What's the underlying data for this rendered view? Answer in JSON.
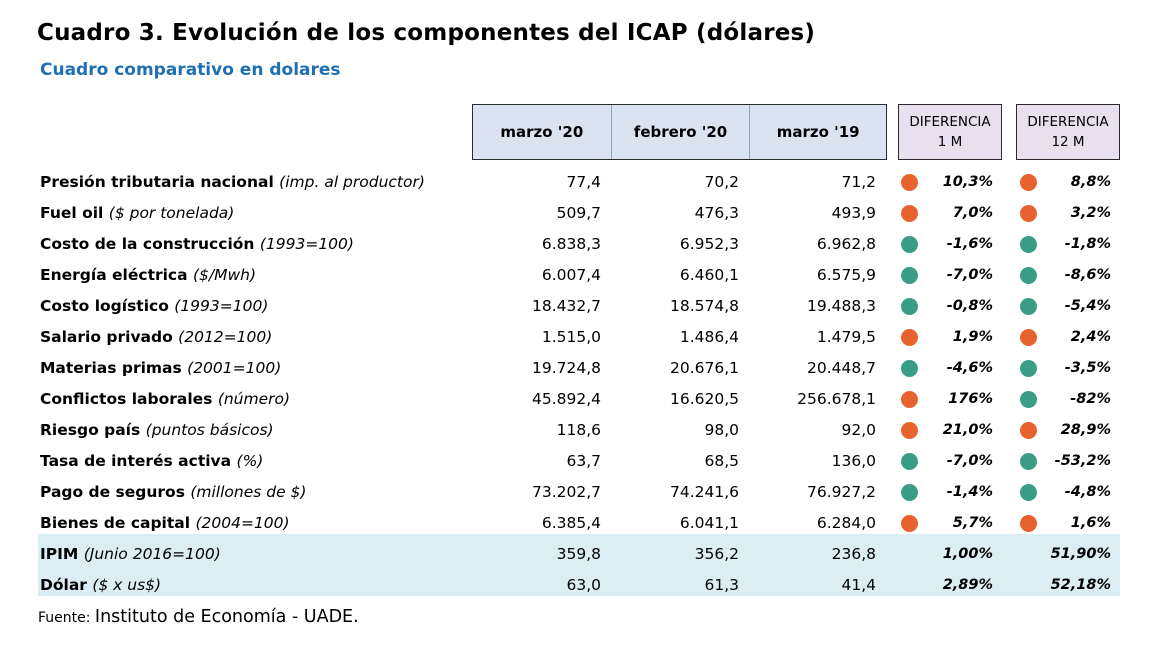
{
  "title": "Cuadro 3. Evolución de los componentes del ICAP (dólares)",
  "subtitle": "Cuadro comparativo en dolares",
  "headers": {
    "col1": "marzo '20",
    "col2": "febrero '20",
    "col3": "marzo '19",
    "diff1_line1": "DIFERENCIA",
    "diff1_line2": "1 M",
    "diff12_line1": "DIFERENCIA",
    "diff12_line2": "12 M"
  },
  "colors": {
    "up": "#e8622f",
    "down": "#3a9e87",
    "header_bg": "#dbe3f0",
    "diff_bg": "#e8e0ef",
    "band_bg": "#daeef3",
    "subtitle": "#1f6fb5"
  },
  "rows": [
    {
      "name": "Presión tributaria nacional",
      "unit": "(imp. al productor)",
      "v1": "77,4",
      "v2": "70,2",
      "v3": "71,2",
      "d1": "10,3%",
      "d1_dir": "up",
      "d12": "8,8%",
      "d12_dir": "up"
    },
    {
      "name": "Fuel oil",
      "unit": "($ por tonelada)",
      "v1": "509,7",
      "v2": "476,3",
      "v3": "493,9",
      "d1": "7,0%",
      "d1_dir": "up",
      "d12": "3,2%",
      "d12_dir": "up"
    },
    {
      "name": "Costo de la construcción",
      "unit": "(1993=100)",
      "v1": "6.838,3",
      "v2": "6.952,3",
      "v3": "6.962,8",
      "d1": "-1,6%",
      "d1_dir": "down",
      "d12": "-1,8%",
      "d12_dir": "down"
    },
    {
      "name": " Energía eléctrica",
      "unit": "($/Mwh)",
      "v1": "6.007,4",
      "v2": "6.460,1",
      "v3": "6.575,9",
      "d1": "-7,0%",
      "d1_dir": "down",
      "d12": "-8,6%",
      "d12_dir": "down"
    },
    {
      "name": "Costo logístico",
      "unit": "(1993=100)",
      "v1": "18.432,7",
      "v2": "18.574,8",
      "v3": "19.488,3",
      "d1": "-0,8%",
      "d1_dir": "down",
      "d12": "-5,4%",
      "d12_dir": "down"
    },
    {
      "name": "Salario privado",
      "unit": "(2012=100)",
      "v1": "1.515,0",
      "v2": "1.486,4",
      "v3": "1.479,5",
      "d1": "1,9%",
      "d1_dir": "up",
      "d12": "2,4%",
      "d12_dir": "up"
    },
    {
      "name": "Materias primas",
      "unit": "(2001=100)",
      "v1": "19.724,8",
      "v2": "20.676,1",
      "v3": "20.448,7",
      "d1": "-4,6%",
      "d1_dir": "down",
      "d12": "-3,5%",
      "d12_dir": "down"
    },
    {
      "name": "Conflictos laborales",
      "unit": "(número)",
      "v1": "45.892,4",
      "v2": "16.620,5",
      "v3": "256.678,1",
      "d1": "176%",
      "d1_dir": "up",
      "d12": "-82%",
      "d12_dir": "down"
    },
    {
      "name": "Riesgo país",
      "unit": "(puntos básicos)",
      "v1": "118,6",
      "v2": "98,0",
      "v3": "92,0",
      "d1": "21,0%",
      "d1_dir": "up",
      "d12": "28,9%",
      "d12_dir": "up"
    },
    {
      "name": "Tasa de interés activa",
      "unit": "(%)",
      "v1": "63,7",
      "v2": "68,5",
      "v3": "136,0",
      "d1": "-7,0%",
      "d1_dir": "down",
      "d12": "-53,2%",
      "d12_dir": "down"
    },
    {
      "name": "Pago de seguros",
      "unit": "(millones de $)",
      "v1": "73.202,7",
      "v2": "74.241,6",
      "v3": "76.927,2",
      "d1": "-1,4%",
      "d1_dir": "down",
      "d12": "-4,8%",
      "d12_dir": "down"
    },
    {
      "name": "Bienes de capital",
      "unit": "(2004=100)",
      "v1": "6.385,4",
      "v2": "6.041,1",
      "v3": "6.284,0",
      "d1": "5,7%",
      "d1_dir": "up",
      "d12": "1,6%",
      "d12_dir": "up"
    },
    {
      "name": "IPIM",
      "unit": "(Junio 2016=100)",
      "v1": "359,8",
      "v2": "356,2",
      "v3": "236,8",
      "d1": "1,00%",
      "d1_dir": "",
      "d12": "51,90%",
      "d12_dir": ""
    },
    {
      "name": "Dólar",
      "unit": "($ x us$)",
      "v1": "63,0",
      "v2": "61,3",
      "v3": "41,4",
      "d1": "2,89%",
      "d1_dir": "",
      "d12": "52,18%",
      "d12_dir": ""
    }
  ],
  "source_label": "Fuente:",
  "source_text": "Instituto de Economía - UADE."
}
